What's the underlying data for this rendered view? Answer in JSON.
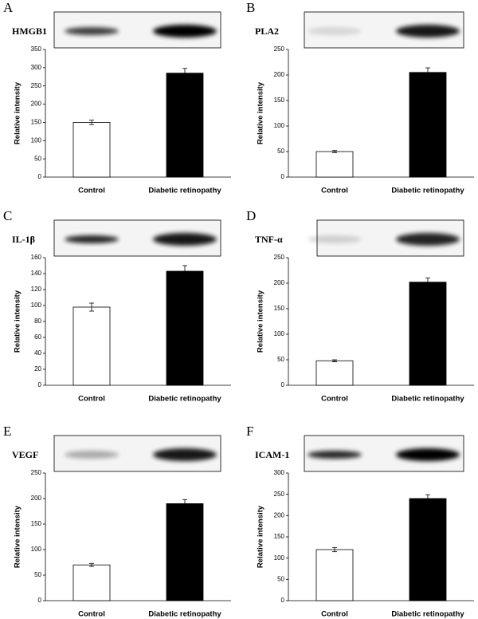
{
  "chart_data": [
    {
      "type": "bar",
      "panel": "A",
      "blot_label": "HMGB1",
      "ylabel": "Relative intensity",
      "categories": [
        "Control",
        "Diabetic retinopathy"
      ],
      "values": [
        150,
        285
      ],
      "errors": [
        6,
        13
      ],
      "colors": [
        "#ffffff",
        "#000000"
      ],
      "ylim": [
        0,
        350
      ],
      "yticks": [
        0,
        50,
        100,
        150,
        200,
        250,
        300,
        350
      ]
    },
    {
      "type": "bar",
      "panel": "B",
      "blot_label": "PLA2",
      "ylabel": "Relative intensity",
      "categories": [
        "Control",
        "Diabetic retinopathy"
      ],
      "values": [
        50,
        205
      ],
      "errors": [
        2,
        9
      ],
      "colors": [
        "#ffffff",
        "#000000"
      ],
      "ylim": [
        0,
        250
      ],
      "yticks": [
        0,
        50,
        100,
        150,
        200,
        250
      ]
    },
    {
      "type": "bar",
      "panel": "C",
      "blot_label": "IL-1β",
      "ylabel": "Relative intensity",
      "categories": [
        "Control",
        "Diabetic retinopathy"
      ],
      "values": [
        98,
        143
      ],
      "errors": [
        5,
        7
      ],
      "colors": [
        "#ffffff",
        "#000000"
      ],
      "ylim": [
        0,
        160
      ],
      "yticks": [
        0,
        20,
        40,
        60,
        80,
        100,
        120,
        140,
        160
      ]
    },
    {
      "type": "bar",
      "panel": "D",
      "blot_label": "TNF-α",
      "ylabel": "Relative intensity",
      "categories": [
        "Control",
        "Diabetic retinopathy"
      ],
      "values": [
        48,
        202
      ],
      "errors": [
        2,
        8
      ],
      "colors": [
        "#ffffff",
        "#000000"
      ],
      "ylim": [
        0,
        250
      ],
      "yticks": [
        0,
        50,
        100,
        150,
        200,
        250
      ]
    },
    {
      "type": "bar",
      "panel": "E",
      "blot_label": "VEGF",
      "ylabel": "Relative intensity",
      "categories": [
        "Control",
        "Diabetic retinopathy"
      ],
      "values": [
        70,
        190
      ],
      "errors": [
        3,
        8
      ],
      "colors": [
        "#ffffff",
        "#000000"
      ],
      "ylim": [
        0,
        250
      ],
      "yticks": [
        0,
        50,
        100,
        150,
        200,
        250
      ]
    },
    {
      "type": "bar",
      "panel": "F",
      "blot_label": "ICAM-1",
      "ylabel": "Relative intensity",
      "categories": [
        "Control",
        "Diabetic retinopathy"
      ],
      "values": [
        120,
        240
      ],
      "errors": [
        5,
        9
      ],
      "colors": [
        "#ffffff",
        "#000000"
      ],
      "ylim": [
        0,
        300
      ],
      "yticks": [
        0,
        50,
        100,
        150,
        200,
        250,
        300
      ]
    }
  ]
}
